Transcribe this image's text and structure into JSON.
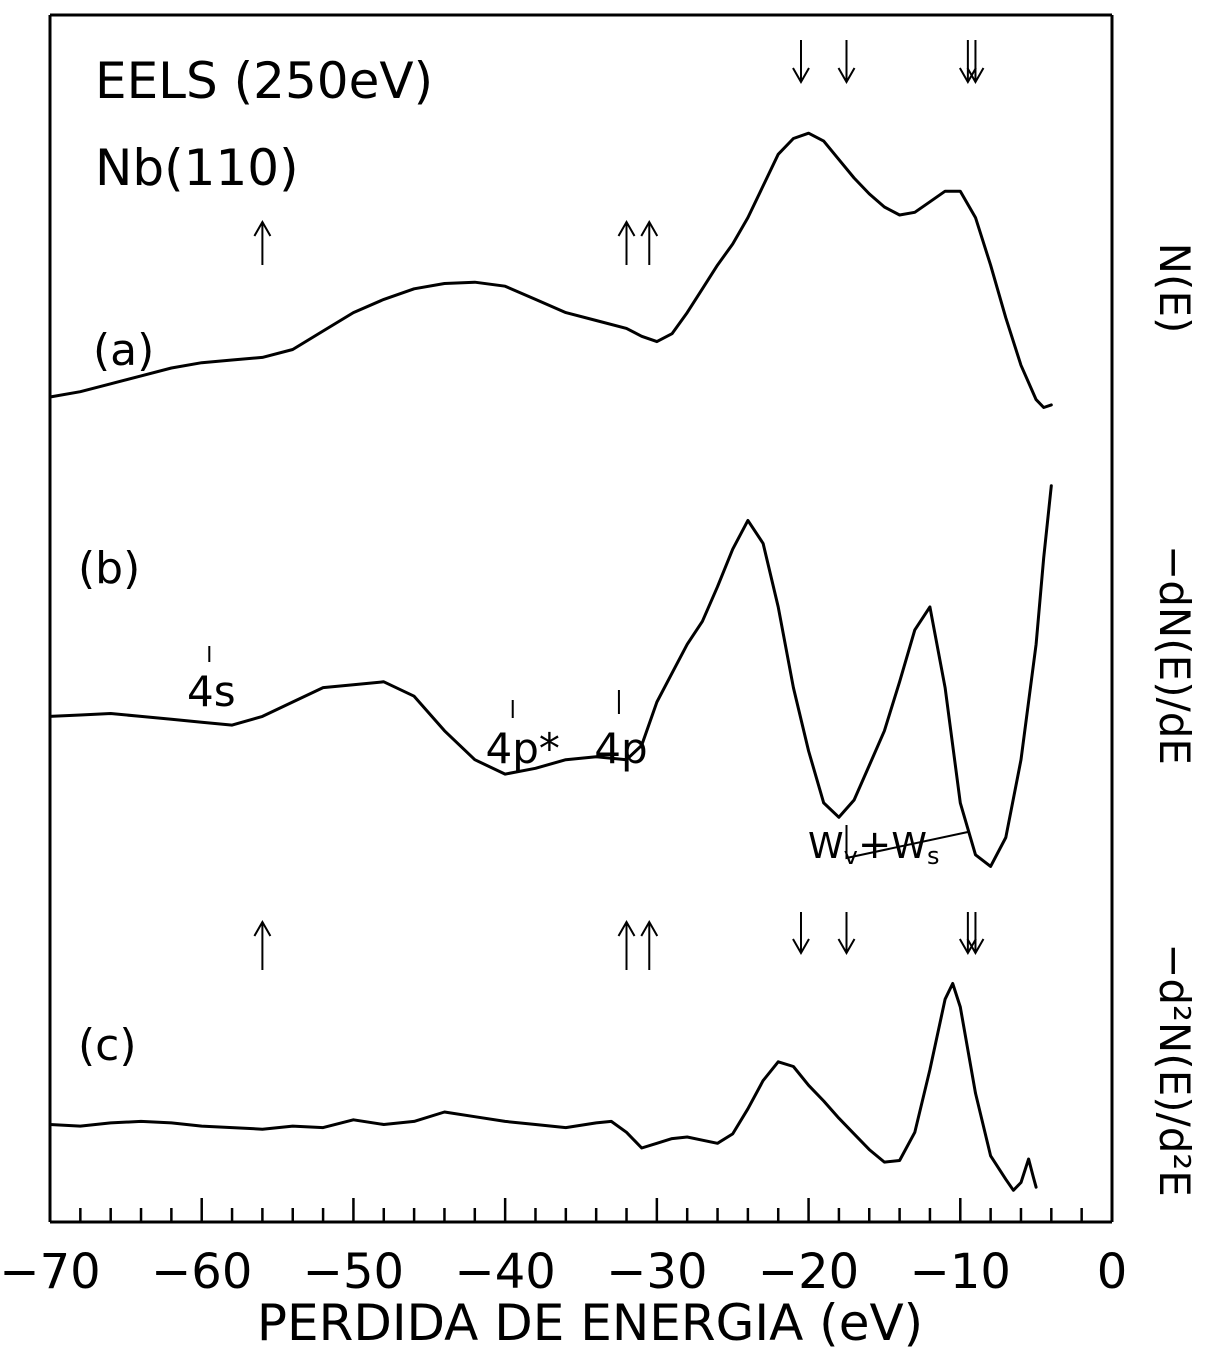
{
  "chart_data": {
    "type": "line",
    "title": "EELS (250eV)",
    "subtitle": "Nb(110)",
    "xlabel": "PERDIDA DE ENERGIA (eV)",
    "xlim": [
      -70,
      0
    ],
    "xticks": [
      -70,
      -60,
      -50,
      -40,
      -30,
      -20,
      -10,
      0
    ],
    "xtick_labels": [
      "−70",
      "−60",
      "−50",
      "−40",
      "−30",
      "−20",
      "−10",
      "0"
    ],
    "minor_tick_step": 2,
    "grid": false,
    "series": [
      {
        "name": "N(E)",
        "panel_label": "(a)",
        "y_min": -0.22,
        "y_max": 1.05,
        "x": [
          -70,
          -68,
          -66,
          -64,
          -62,
          -60,
          -58,
          -56,
          -54,
          -52,
          -50,
          -48,
          -46,
          -44,
          -42,
          -40,
          -38,
          -36,
          -34,
          -32,
          -31,
          -30,
          -29,
          -28,
          -27,
          -26,
          -25,
          -24,
          -23,
          -22,
          -21,
          -20,
          -19,
          -18,
          -17,
          -16,
          -15,
          -14,
          -13,
          -12,
          -11,
          -10,
          -9,
          -8,
          -7,
          -6,
          -5,
          -4.5,
          -4
        ],
        "y": [
          0,
          0.02,
          0.05,
          0.08,
          0.11,
          0.13,
          0.14,
          0.15,
          0.18,
          0.25,
          0.32,
          0.37,
          0.41,
          0.43,
          0.435,
          0.42,
          0.37,
          0.32,
          0.29,
          0.26,
          0.23,
          0.21,
          0.24,
          0.32,
          0.41,
          0.5,
          0.58,
          0.68,
          0.8,
          0.92,
          0.98,
          1.0,
          0.97,
          0.9,
          0.83,
          0.77,
          0.72,
          0.69,
          0.7,
          0.74,
          0.78,
          0.78,
          0.68,
          0.5,
          0.3,
          0.12,
          -0.01,
          -0.04,
          -0.03
        ]
      },
      {
        "name": "−dN(E)/dE",
        "panel_label": "(b)",
        "y_min": -0.55,
        "y_max": 0.82,
        "x": [
          -70,
          -68,
          -66,
          -64,
          -62,
          -60,
          -58,
          -56,
          -54,
          -52,
          -50,
          -48,
          -46,
          -44,
          -42,
          -40,
          -38,
          -36,
          -34,
          -32,
          -31,
          -30,
          -29,
          -28,
          -27,
          -26,
          -25,
          -24,
          -23,
          -22,
          -21,
          -20,
          -19,
          -18,
          -17,
          -16,
          -15,
          -14,
          -13,
          -12,
          -11,
          -10,
          -9,
          -8,
          -7,
          -6,
          -5,
          -4.5,
          -4
        ],
        "y": [
          0,
          0.005,
          0.01,
          0.0,
          -0.01,
          -0.02,
          -0.03,
          0.0,
          0.05,
          0.1,
          0.11,
          0.12,
          0.07,
          -0.05,
          -0.15,
          -0.2,
          -0.18,
          -0.15,
          -0.14,
          -0.15,
          -0.1,
          0.05,
          0.15,
          0.25,
          0.33,
          0.45,
          0.58,
          0.68,
          0.6,
          0.38,
          0.1,
          -0.12,
          -0.3,
          -0.35,
          -0.29,
          -0.17,
          -0.05,
          0.12,
          0.3,
          0.38,
          0.1,
          -0.3,
          -0.48,
          -0.52,
          -0.42,
          -0.15,
          0.25,
          0.55,
          0.8
        ]
      },
      {
        "name": "−d²N(E)/d²E",
        "panel_label": "(c)",
        "y_min": -0.45,
        "y_max": 1.05,
        "x": [
          -70,
          -68,
          -66,
          -64,
          -62,
          -60,
          -58,
          -56,
          -54,
          -52,
          -50,
          -48,
          -46,
          -44,
          -42,
          -40,
          -38,
          -36,
          -34,
          -33,
          -32,
          -31,
          -30,
          -29,
          -28,
          -27,
          -26,
          -25,
          -24,
          -23,
          -22,
          -21,
          -20,
          -19,
          -18,
          -17,
          -16,
          -15,
          -14,
          -13,
          -12,
          -11,
          -10.5,
          -10,
          -9,
          -8,
          -7,
          -6.5,
          -6,
          -5.5,
          -5.2,
          -5
        ],
        "y": [
          0,
          -0.01,
          0.01,
          0.02,
          0.01,
          -0.01,
          -0.02,
          -0.03,
          -0.01,
          -0.02,
          0.03,
          0.0,
          0.02,
          0.08,
          0.05,
          0.02,
          0.0,
          -0.02,
          0.01,
          0.02,
          -0.05,
          -0.15,
          -0.12,
          -0.09,
          -0.08,
          -0.1,
          -0.12,
          -0.06,
          0.1,
          0.28,
          0.4,
          0.37,
          0.25,
          0.15,
          0.04,
          -0.06,
          -0.16,
          -0.24,
          -0.23,
          -0.05,
          0.35,
          0.8,
          0.9,
          0.75,
          0.2,
          -0.2,
          -0.35,
          -0.42,
          -0.37,
          -0.22,
          -0.33,
          -0.4
        ]
      }
    ],
    "annotations": {
      "arrows_up": [
        -56,
        -32,
        -30.5
      ],
      "arrows_down": [
        -20.5,
        -17.5,
        -9.5,
        -9
      ],
      "features": [
        {
          "label": "4s",
          "x": -59.5
        },
        {
          "label": "4p*",
          "x": -39.5
        },
        {
          "label": "4p",
          "x": -32.5
        },
        {
          "label": "W",
          "sub_left": "v",
          "plus": "+",
          "sub_right": "s",
          "x": -15
        }
      ]
    }
  }
}
